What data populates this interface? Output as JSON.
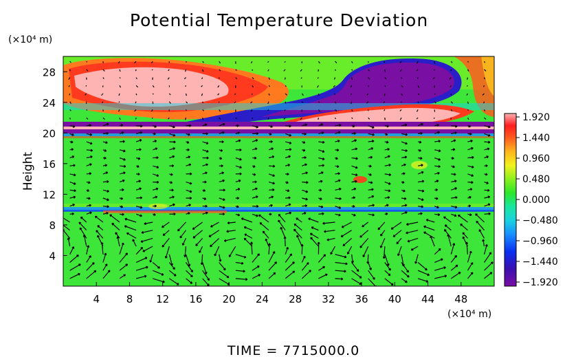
{
  "chart_data": {
    "type": "heatmap",
    "title": "Potential Temperature Deviation",
    "xlabel": "",
    "ylabel": "Height",
    "x_unit": "(×10⁴ m)",
    "y_unit": "(×10⁴ m)",
    "xlim": [
      0,
      52
    ],
    "ylim": [
      0,
      30
    ],
    "x_ticks": [
      4,
      8,
      12,
      16,
      20,
      24,
      28,
      32,
      36,
      40,
      44,
      48
    ],
    "y_ticks": [
      4,
      8,
      12,
      16,
      20,
      24,
      28
    ],
    "colorbar": {
      "min": -1.92,
      "max": 1.92,
      "tick_labels": [
        "1.920",
        "1.440",
        "0.960",
        "0.480",
        "0.000",
        "−0.480",
        "−0.960",
        "−1.440",
        "−1.920"
      ]
    },
    "overlay": "wind vectors",
    "footer": "TIME = 7715000.0",
    "features": [
      {
        "name": "warm anomaly upper left",
        "value": 1.92,
        "x": [
          1,
          24
        ],
        "y": [
          24,
          29.5
        ]
      },
      {
        "name": "cold anomaly upper right",
        "value": -1.92,
        "x": [
          30,
          46
        ],
        "y": [
          22,
          29.5
        ]
      },
      {
        "name": "cold band",
        "value": -1.92,
        "x": [
          0,
          52
        ],
        "y": [
          20,
          21.5
        ]
      },
      {
        "name": "warm lens",
        "value": 1.92,
        "x": [
          30,
          46
        ],
        "y": [
          21,
          23
        ]
      },
      {
        "name": "mid-level band",
        "value": -0.5,
        "x": [
          0,
          52
        ],
        "y": [
          9.7,
          10.4
        ]
      }
    ]
  }
}
